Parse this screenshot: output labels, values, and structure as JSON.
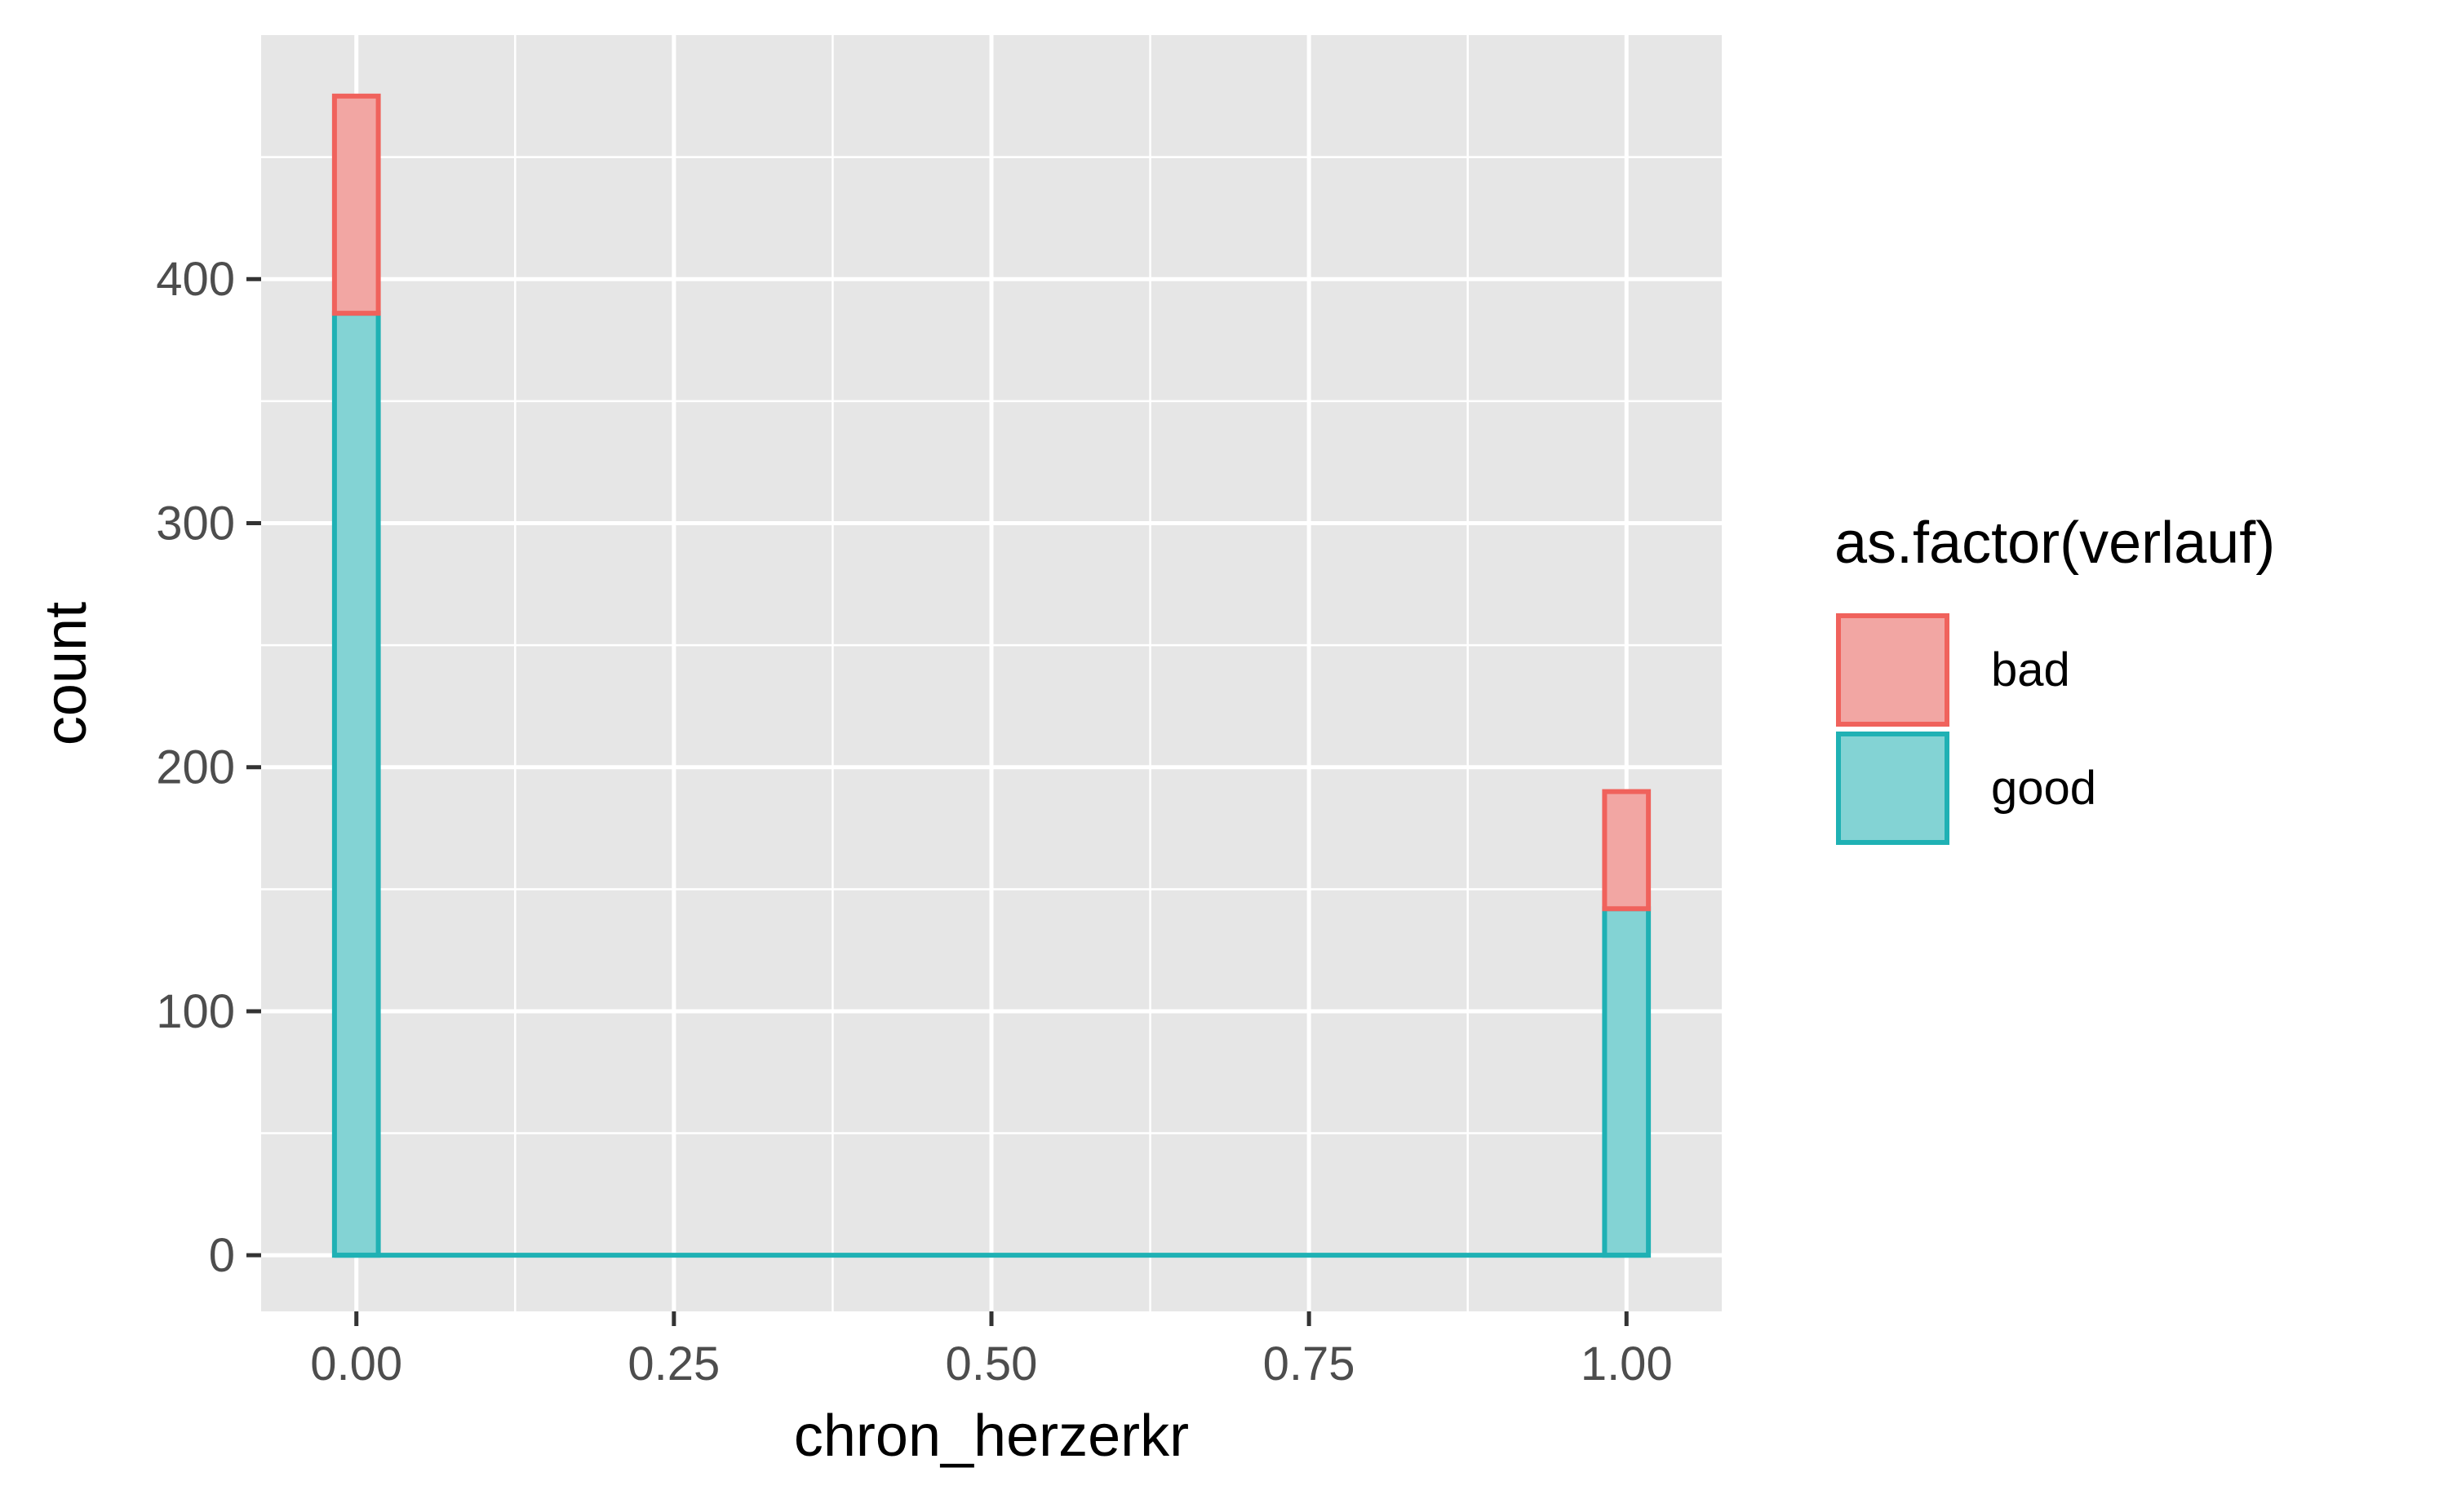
{
  "chart_data": {
    "type": "bar",
    "subtype": "stacked-histogram",
    "title": "",
    "xlabel": "chron_herzerkr",
    "ylabel": "count",
    "xlim": [
      -0.075,
      1.075
    ],
    "ylim": [
      -23,
      500
    ],
    "x_ticks": [
      0,
      0.25,
      0.5,
      0.75,
      1
    ],
    "x_tick_labels": [
      "0.00",
      "0.25",
      "0.50",
      "0.75",
      "1.00"
    ],
    "x_minor_grid": [
      0.125,
      0.375,
      0.625,
      0.875
    ],
    "y_ticks": [
      0,
      100,
      200,
      300,
      400
    ],
    "y_tick_labels": [
      "0",
      "100",
      "200",
      "300",
      "400"
    ],
    "y_minor_grid": [
      50,
      150,
      250,
      350,
      450
    ],
    "grid": true,
    "bin_width": 0.0345,
    "x": [
      0,
      1
    ],
    "series": [
      {
        "name": "good",
        "values": [
          386,
          142
        ],
        "fill": "#83d3d4",
        "stroke": "#1fb1b4"
      },
      {
        "name": "bad",
        "values": [
          89,
          48
        ],
        "fill": "#f2a6a3",
        "stroke": "#f0625c"
      }
    ],
    "legend": {
      "title": "as.factor(verlauf)",
      "placement": "right",
      "items": [
        "bad",
        "good"
      ]
    },
    "colors": {
      "panel": "#e6e6e6",
      "grid": "#ffffff",
      "tick": "#333333"
    }
  }
}
